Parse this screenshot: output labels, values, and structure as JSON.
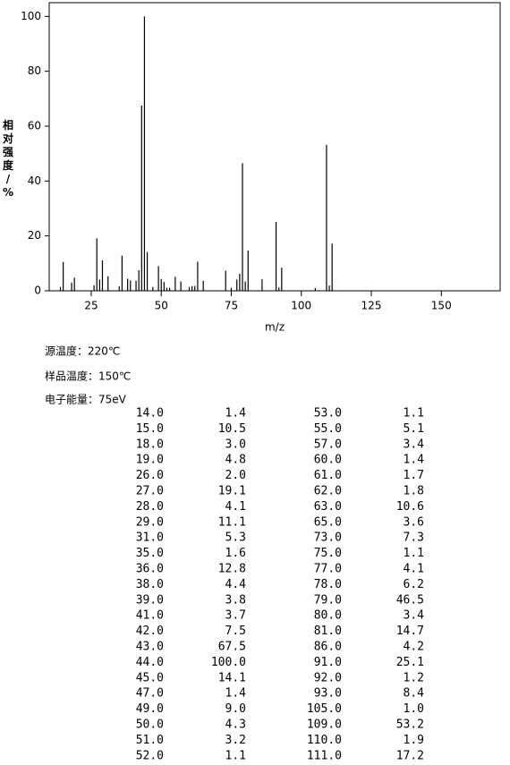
{
  "chart_data": {
    "type": "stem",
    "xlabel": "m/z",
    "ylabel": "相对强度/%",
    "x": [
      14,
      15,
      18,
      19,
      26,
      27,
      28,
      29,
      31,
      35,
      36,
      38,
      39,
      41,
      42,
      43,
      44,
      45,
      47,
      49,
      50,
      51,
      52,
      53,
      55,
      57,
      60,
      61,
      62,
      63,
      65,
      73,
      75,
      77,
      78,
      79,
      80,
      81,
      86,
      91,
      92,
      93,
      105,
      109,
      110,
      111
    ],
    "values": [
      1.4,
      10.5,
      3.0,
      4.8,
      2.0,
      19.1,
      4.1,
      11.1,
      5.3,
      1.6,
      12.8,
      4.4,
      3.8,
      3.7,
      7.5,
      67.5,
      100.0,
      14.1,
      1.4,
      9.0,
      4.3,
      3.2,
      1.1,
      1.1,
      5.1,
      3.4,
      1.4,
      1.7,
      1.8,
      10.6,
      3.6,
      7.3,
      1.1,
      4.1,
      6.2,
      46.5,
      3.4,
      14.7,
      4.2,
      25.1,
      1.2,
      8.4,
      1.0,
      53.2,
      1.9,
      17.2
    ],
    "color": "#000000",
    "xlim": [
      10,
      171
    ],
    "ylim": [
      0,
      105
    ],
    "xticks": [
      25,
      50,
      75,
      100,
      125,
      150
    ],
    "yticks": [
      0,
      20,
      40,
      60,
      80,
      100
    ]
  },
  "conditions": [
    "源温度：220℃",
    "样品温度：150℃",
    "电子能量：75eV"
  ],
  "table": {
    "rows": [
      [
        "14.0",
        "1.4",
        "53.0",
        "1.1"
      ],
      [
        "15.0",
        "10.5",
        "55.0",
        "5.1"
      ],
      [
        "18.0",
        "3.0",
        "57.0",
        "3.4"
      ],
      [
        "19.0",
        "4.8",
        "60.0",
        "1.4"
      ],
      [
        "26.0",
        "2.0",
        "61.0",
        "1.7"
      ],
      [
        "27.0",
        "19.1",
        "62.0",
        "1.8"
      ],
      [
        "28.0",
        "4.1",
        "63.0",
        "10.6"
      ],
      [
        "29.0",
        "11.1",
        "65.0",
        "3.6"
      ],
      [
        "31.0",
        "5.3",
        "73.0",
        "7.3"
      ],
      [
        "35.0",
        "1.6",
        "75.0",
        "1.1"
      ],
      [
        "36.0",
        "12.8",
        "77.0",
        "4.1"
      ],
      [
        "38.0",
        "4.4",
        "78.0",
        "6.2"
      ],
      [
        "39.0",
        "3.8",
        "79.0",
        "46.5"
      ],
      [
        "41.0",
        "3.7",
        "80.0",
        "3.4"
      ],
      [
        "42.0",
        "7.5",
        "81.0",
        "14.7"
      ],
      [
        "43.0",
        "67.5",
        "86.0",
        "4.2"
      ],
      [
        "44.0",
        "100.0",
        "91.0",
        "25.1"
      ],
      [
        "45.0",
        "14.1",
        "92.0",
        "1.2"
      ],
      [
        "47.0",
        "1.4",
        "93.0",
        "8.4"
      ],
      [
        "49.0",
        "9.0",
        "105.0",
        "1.0"
      ],
      [
        "50.0",
        "4.3",
        "109.0",
        "53.2"
      ],
      [
        "51.0",
        "3.2",
        "110.0",
        "1.9"
      ],
      [
        "52.0",
        "1.1",
        "111.0",
        "17.2"
      ]
    ]
  }
}
